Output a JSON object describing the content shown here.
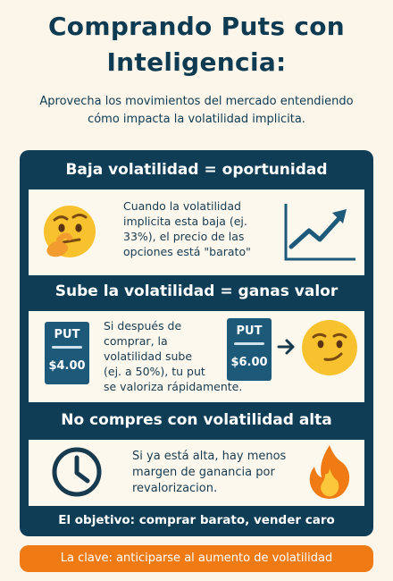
{
  "header": {
    "title_line1": "Comprando Puts con",
    "title_line2": "Inteligencia:",
    "subtitle_line1": "Aprovecha los movimientos del mercado entendiendo",
    "subtitle_line2": "cómo impacta la volatilidad implicita."
  },
  "sections": [
    {
      "heading": "Baja volatilidad = oportunidad",
      "text": [
        "Cuando la volatilidad",
        "implicita esta baja (ej.",
        "33%), el precio de las",
        "opciones está \"barato\""
      ],
      "icons": [
        "thinking-face-icon",
        "rising-chart-icon"
      ]
    },
    {
      "heading": "Sube la volatilidad = ganas valor",
      "text": [
        "Si después de",
        "comprar, la",
        "volatilidad sube",
        "(ej. a 50%), tu put",
        "se valoriza rápidamente."
      ],
      "put_before": {
        "label": "PUT",
        "price": "$4.00"
      },
      "put_after": {
        "label": "PUT",
        "price": "$6.00"
      },
      "icons": [
        "arrow-right-icon",
        "smirking-face-icon"
      ]
    },
    {
      "heading": "No compres con volatilidad alta",
      "text": [
        "Si ya está alta, hay menos",
        "margen de ganancia por",
        "revalorizacion."
      ],
      "icons": [
        "clock-icon",
        "fire-icon"
      ]
    }
  ],
  "footer_line": "El objetivo: comprar barato, vender caro",
  "banner": "La clave: anticiparse al aumento de volatilidad",
  "colors": {
    "navy": "#0f3d55",
    "cream": "#fdf8ee",
    "orange": "#f07a14",
    "background": "#fbf5ea"
  }
}
